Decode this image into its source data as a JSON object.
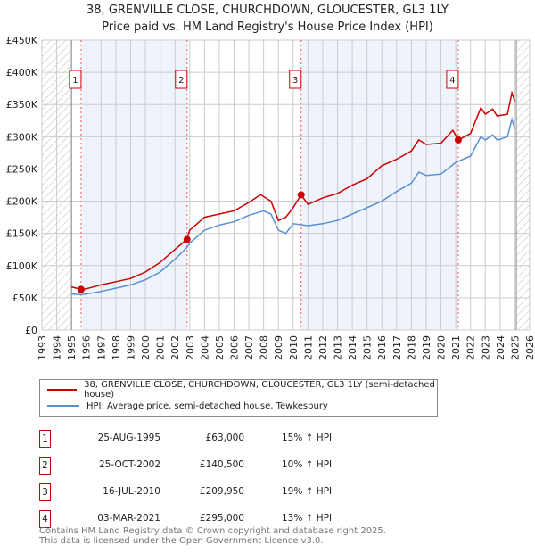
{
  "chart_data": {
    "type": "line",
    "title": "38, GRENVILLE CLOSE, CHURCHDOWN, GLOUCESTER, GL3 1LY",
    "subtitle": "Price paid vs. HM Land Registry's House Price Index (HPI)",
    "xlim": [
      1993,
      2026
    ],
    "ylim": [
      0,
      450000
    ],
    "x_ticks": [
      "1993",
      "1994",
      "1995",
      "1996",
      "1997",
      "1998",
      "1999",
      "2000",
      "2001",
      "2002",
      "2003",
      "2004",
      "2005",
      "2006",
      "2007",
      "2008",
      "2009",
      "2010",
      "2011",
      "2012",
      "2013",
      "2014",
      "2015",
      "2016",
      "2017",
      "2018",
      "2019",
      "2020",
      "2021",
      "2022",
      "2023",
      "2024",
      "2025",
      "2026"
    ],
    "y_ticks": [
      {
        "v": 0,
        "label": "£0"
      },
      {
        "v": 50000,
        "label": "£50K"
      },
      {
        "v": 100000,
        "label": "£100K"
      },
      {
        "v": 150000,
        "label": "£150K"
      },
      {
        "v": 200000,
        "label": "£200K"
      },
      {
        "v": 250000,
        "label": "£250K"
      },
      {
        "v": 300000,
        "label": "£300K"
      },
      {
        "v": 350000,
        "label": "£350K"
      },
      {
        "v": 400000,
        "label": "£400K"
      },
      {
        "v": 450000,
        "label": "£450K"
      }
    ],
    "grid": true,
    "series": [
      {
        "name": "38, GRENVILLE CLOSE, CHURCHDOWN, GLOUCESTER, GL3 1LY (semi-detached house)",
        "color": "#cc0000",
        "x": [
          1995,
          1995.65,
          1996,
          1997,
          1998,
          1999,
          2000,
          2001,
          2002,
          2002.8,
          2003,
          2004,
          2005,
          2006,
          2007,
          2007.8,
          2008.5,
          2009,
          2009.5,
          2010,
          2010.54,
          2011,
          2012,
          2013,
          2014,
          2015,
          2016,
          2017,
          2018,
          2018.5,
          2019,
          2020,
          2020.8,
          2021.17,
          2021.6,
          2022,
          2022.7,
          2023,
          2023.5,
          2023.8,
          2024,
          2024.5,
          2024.8,
          2025
        ],
        "y": [
          67000,
          63000,
          64000,
          70000,
          75000,
          80000,
          90000,
          105000,
          125000,
          140500,
          155000,
          175000,
          180000,
          185000,
          198000,
          210000,
          200000,
          170000,
          175000,
          190000,
          209950,
          195000,
          205000,
          212000,
          225000,
          235000,
          255000,
          265000,
          278000,
          295000,
          288000,
          290000,
          310000,
          295000,
          300000,
          305000,
          345000,
          335000,
          343000,
          332000,
          333000,
          335000,
          368000,
          355000
        ]
      },
      {
        "name": "HPI: Average price, semi-detached house, Tewkesbury",
        "color": "#5b8fd4",
        "x": [
          1995,
          1995.65,
          1996,
          1997,
          1998,
          1999,
          2000,
          2001,
          2002,
          2002.8,
          2003,
          2004,
          2005,
          2006,
          2007,
          2008,
          2008.5,
          2009,
          2009.5,
          2010,
          2011,
          2012,
          2013,
          2014,
          2015,
          2016,
          2017,
          2018,
          2018.5,
          2019,
          2020,
          2021,
          2022,
          2022.7,
          2023,
          2023.5,
          2023.8,
          2024,
          2024.5,
          2024.8,
          2025
        ],
        "y": [
          56000,
          55000,
          56000,
          60000,
          65000,
          70000,
          78000,
          90000,
          110000,
          128000,
          135000,
          155000,
          163000,
          168000,
          178000,
          185000,
          180000,
          155000,
          150000,
          165000,
          162000,
          165000,
          170000,
          180000,
          190000,
          200000,
          215000,
          228000,
          245000,
          240000,
          242000,
          260000,
          270000,
          300000,
          295000,
          303000,
          295000,
          296000,
          300000,
          327000,
          312000
        ]
      }
    ],
    "sales": [
      {
        "n": "1",
        "x": 1995.65,
        "y": 63000,
        "date": "25-AUG-1995",
        "price": "£63,000",
        "hpi": "15% ↑ HPI"
      },
      {
        "n": "2",
        "x": 2002.82,
        "y": 140500,
        "date": "25-OCT-2002",
        "price": "£140,500",
        "hpi": "10% ↑ HPI"
      },
      {
        "n": "3",
        "x": 2010.54,
        "y": 209950,
        "date": "16-JUL-2010",
        "price": "£209,950",
        "hpi": "19% ↑ HPI"
      },
      {
        "n": "4",
        "x": 2021.17,
        "y": 295000,
        "date": "03-MAR-2021",
        "price": "£295,000",
        "hpi": "13% ↑ HPI"
      }
    ],
    "hatched_before": 1995,
    "hatched_after": 2025.1
  },
  "footer": {
    "line1": "Contains HM Land Registry data © Crown copyright and database right 2025.",
    "line2": "This data is licensed under the Open Government Licence v3.0."
  }
}
